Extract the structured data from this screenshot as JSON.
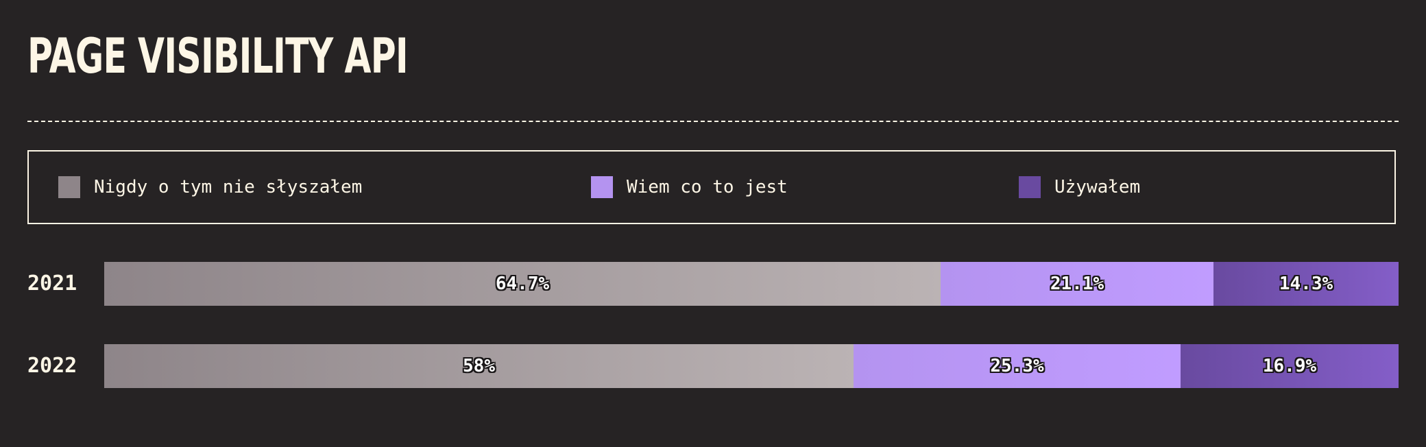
{
  "title": "PAGE VISIBILITY API",
  "legend": {
    "items": [
      {
        "label": "Nigdy o tym nie słyszałem",
        "color": "#8e8589"
      },
      {
        "label": "Wiem co to jest",
        "color": "#b493f0"
      },
      {
        "label": "Używałem",
        "color": "#694aa0"
      }
    ]
  },
  "chart_data": {
    "type": "bar",
    "orientation": "horizontal",
    "stacked": true,
    "percent": true,
    "categories": [
      "2021",
      "2022"
    ],
    "series": [
      {
        "name": "Nigdy o tym nie słyszałem",
        "values": [
          64.7,
          58
        ],
        "labels": [
          "64.7%",
          "58%"
        ],
        "color": "#8e8589"
      },
      {
        "name": "Wiem co to jest",
        "values": [
          21.1,
          25.3
        ],
        "labels": [
          "21.1%",
          "25.3%"
        ],
        "color": "#b493f0"
      },
      {
        "name": "Używałem",
        "values": [
          14.3,
          16.9
        ],
        "labels": [
          "14.3%",
          "16.9%"
        ],
        "color": "#694aa0"
      }
    ],
    "xlim": [
      0,
      100
    ],
    "legend_position": "top",
    "grid": false
  }
}
